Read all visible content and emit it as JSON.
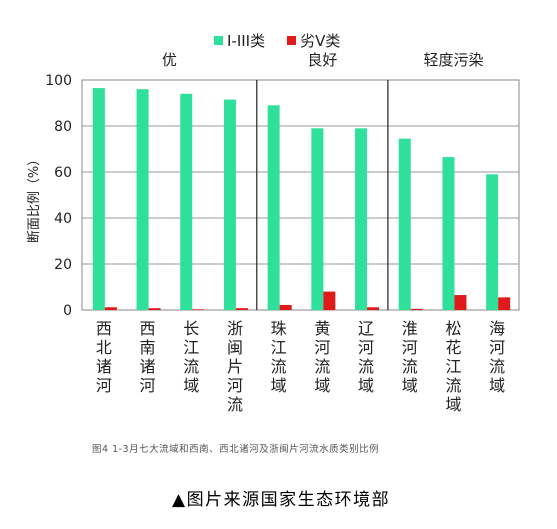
{
  "chart_data": {
    "type": "bar",
    "ylabel": "断面比例（%）",
    "ylim": [
      0,
      100
    ],
    "yticks": [
      0,
      20,
      40,
      60,
      80,
      100
    ],
    "categories": [
      "西北诸河",
      "西南诸河",
      "长江流域",
      "浙闽片河流",
      "珠江流域",
      "黄河流域",
      "辽河流域",
      "淮河流域",
      "松花江流域",
      "海河流域"
    ],
    "groups": [
      {
        "label": "优",
        "categories": [
          "西北诸河",
          "西南诸河",
          "长江流域",
          "浙闽片河流"
        ]
      },
      {
        "label": "良好",
        "categories": [
          "珠江流域",
          "黄河流域",
          "辽河流域"
        ]
      },
      {
        "label": "轻度污染",
        "categories": [
          "淮河流域",
          "松花江流域",
          "海河流域"
        ]
      }
    ],
    "series": [
      {
        "name": "I-III类",
        "color": "#2fe09b",
        "values": [
          96.5,
          96,
          94,
          91.5,
          89,
          79,
          79,
          74.5,
          66.5,
          59
        ]
      },
      {
        "name": "劣V类",
        "color": "#e0191b",
        "values": [
          1.2,
          0.8,
          0.3,
          0.8,
          2.2,
          8,
          1.2,
          0.5,
          6.5,
          5.5
        ]
      }
    ]
  },
  "caption": "图4 1-3月七大流域和西南、西北诸河及浙闽片河流水质类别比例",
  "source_note": "▲图片来源国家生态环境部"
}
